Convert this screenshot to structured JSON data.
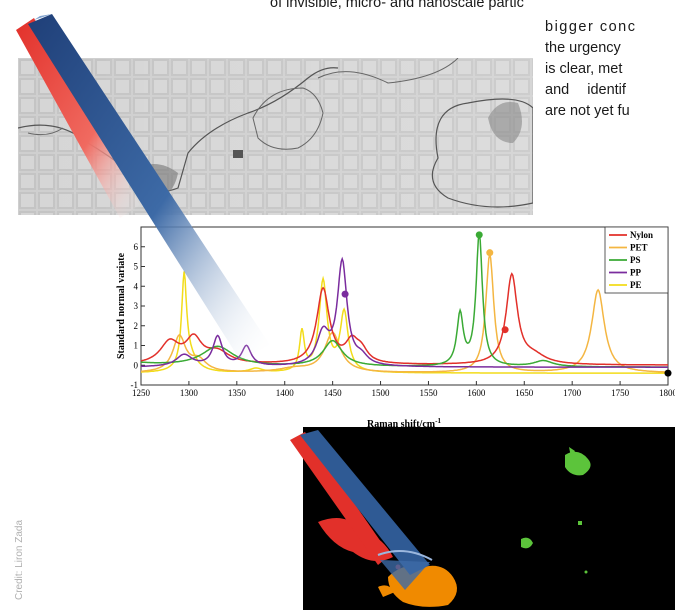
{
  "article": {
    "line1": "of invisible, micro- and nanoscale partic",
    "line2": "bigger conc",
    "line3": "the urgency",
    "line4": "is clear, met",
    "line5": "and identif",
    "line6": "are not yet fu"
  },
  "credit": "Credit: Liron Zada",
  "colors": {
    "nylon": "#e2302a",
    "pet": "#f4b642",
    "ps": "#3aaa35",
    "pp": "#7a2c9e",
    "pe": "#f2dc1a",
    "pen_blue": "#2f5a94",
    "pen_red": "#e2302a",
    "particle_orange": "#f08a00",
    "particle_red": "#e2302a",
    "particle_green": "#5cc43b"
  },
  "chart_data": {
    "type": "line",
    "xlabel": "Raman shift/cm",
    "xlabel_sup": "-1",
    "ylabel": "Standard normal variate",
    "xlim": [
      1250,
      1800
    ],
    "ylim": [
      -1,
      7
    ],
    "xticks": [
      1250,
      1300,
      1350,
      1400,
      1450,
      1500,
      1550,
      1600,
      1650,
      1700,
      1750,
      1800
    ],
    "yticks": [
      -1,
      0,
      1,
      2,
      3,
      4,
      5,
      6
    ],
    "legend": {
      "position": "top-right",
      "entries": [
        "Nylon",
        "PET",
        "PS",
        "PP",
        "PE"
      ]
    },
    "series": [
      {
        "name": "Nylon",
        "color": "#e2302a",
        "marker": [
          1630,
          1.8
        ]
      },
      {
        "name": "PET",
        "color": "#f4b642",
        "marker": [
          1614,
          5.7
        ]
      },
      {
        "name": "PS",
        "color": "#3aaa35",
        "marker": [
          1603,
          6.6
        ]
      },
      {
        "name": "PP",
        "color": "#7a2c9e",
        "marker": [
          1463,
          3.6
        ]
      },
      {
        "name": "PE",
        "color": "#f2dc1a",
        "marker": [
          1800,
          -0.4
        ]
      }
    ]
  }
}
